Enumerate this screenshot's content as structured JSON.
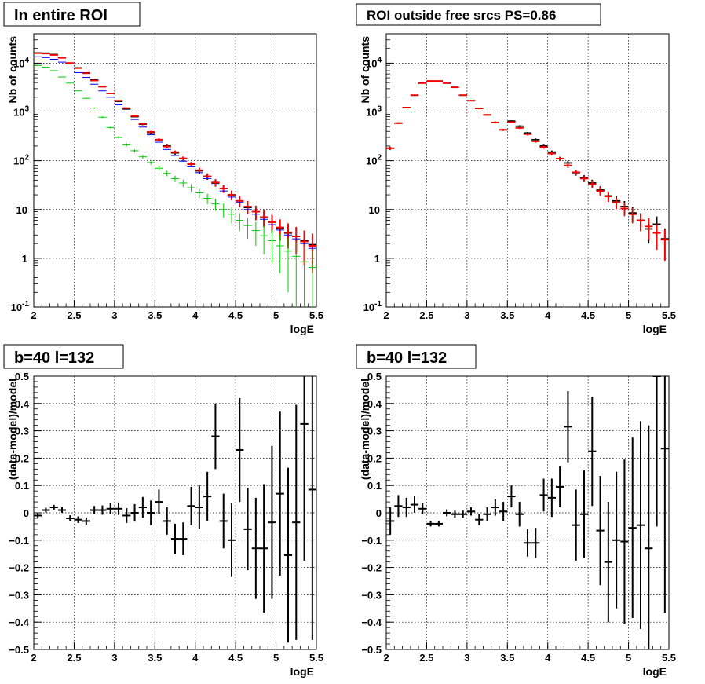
{
  "panels": [
    {
      "title": "In entire ROI"
    },
    {
      "title": "ROI outside free srcs PS=0.86"
    },
    {
      "title": "b=40 l=132"
    },
    {
      "title": "b=40 l=132"
    }
  ],
  "colors": {
    "data": "#000000",
    "model": "#ff0000",
    "component_blue": "#0000ff",
    "component_green": "#00cc00",
    "grid": "#000000"
  },
  "chart_data": [
    {
      "type": "line",
      "title": "In entire ROI",
      "xlabel": "logE",
      "ylabel": "Nb of counts",
      "xlim": [
        2,
        5.5
      ],
      "ylim": [
        0.1,
        40000
      ],
      "yscale": "log",
      "grid": true,
      "x_ticks": [
        "2",
        "2.5",
        "3",
        "3.5",
        "4",
        "4.5",
        "5",
        "5.5"
      ],
      "y_ticks": [
        "10^-1",
        "1",
        "10",
        "10^2",
        "10^3",
        "10^4"
      ],
      "bin_width": 0.1,
      "x": [
        2.05,
        2.15,
        2.25,
        2.35,
        2.45,
        2.55,
        2.65,
        2.75,
        2.85,
        2.95,
        3.05,
        3.15,
        3.25,
        3.35,
        3.45,
        3.55,
        3.65,
        3.75,
        3.85,
        3.95,
        4.05,
        4.15,
        4.25,
        4.35,
        4.45,
        4.55,
        4.65,
        4.75,
        4.85,
        4.95,
        5.05,
        5.15,
        5.25,
        5.35,
        5.45
      ],
      "series": [
        {
          "style": "black",
          "values": [
            16200,
            16000,
            15000,
            13000,
            10000,
            8000,
            6300,
            4500,
            3300,
            2400,
            1650,
            1150,
            800,
            560,
            380,
            270,
            200,
            145,
            110,
            85,
            62,
            47,
            35,
            27,
            20,
            15,
            11,
            9,
            7,
            5.5,
            4.2,
            3.3,
            2.8,
            2.3,
            1.9
          ],
          "errors_lo": [
            130,
            125,
            120,
            110,
            100,
            90,
            80,
            67,
            57,
            49,
            40,
            34,
            28,
            24,
            19,
            16,
            14,
            12,
            10,
            9,
            7.5,
            6.5,
            5.5,
            4.8,
            4,
            3.5,
            3,
            2.7,
            2.4,
            2.1,
            1.9,
            1.7,
            1.5,
            1.4,
            1.3
          ]
        },
        {
          "style": "red",
          "values": [
            16000,
            15700,
            14700,
            12800,
            10100,
            7900,
            6200,
            4400,
            3300,
            2400,
            1700,
            1200,
            820,
            570,
            390,
            270,
            195,
            150,
            112,
            85,
            64,
            48,
            36,
            27,
            20,
            15,
            11.5,
            9,
            7,
            5.5,
            4.3,
            3.4,
            2.8,
            2.2,
            1.8
          ],
          "errors_lo": [
            120,
            120,
            115,
            110,
            100,
            90,
            80,
            66,
            57,
            48,
            40,
            34,
            28,
            24,
            19,
            16,
            14,
            12,
            10,
            9,
            8,
            7,
            6,
            5,
            4.5,
            4,
            3.5,
            3,
            2.7,
            2.3,
            2,
            1.8,
            1.6,
            1.5,
            1.3
          ]
        },
        {
          "style": "blue",
          "values": [
            13500,
            13000,
            12000,
            10500,
            8000,
            6400,
            5100,
            3700,
            2700,
            2000,
            1400,
            1000,
            700,
            490,
            340,
            240,
            170,
            128,
            98,
            75,
            57,
            43,
            32,
            24,
            18,
            14,
            10,
            8,
            6.3,
            4.9,
            3.8,
            3,
            2.5,
            2,
            1.6
          ]
        },
        {
          "style": "green",
          "values": [
            9000,
            8300,
            7000,
            5200,
            3900,
            2700,
            1900,
            1200,
            780,
            480,
            300,
            210,
            160,
            120,
            92,
            70,
            55,
            43,
            35,
            28,
            22,
            17,
            13,
            10,
            8,
            6,
            4.7,
            3.7,
            2.9,
            2.3,
            1.8,
            1.4,
            1.1,
            0.85,
            0.65
          ],
          "errors_lo": [
            95,
            90,
            85,
            72,
            62,
            52,
            44,
            35,
            28,
            22,
            17,
            14,
            12,
            10,
            9,
            8,
            7,
            6.5,
            5.9,
            5.3,
            4.7,
            4.1,
            3.6,
            3.2,
            2.8,
            2.4,
            2.2,
            1.9,
            1.7,
            1.5,
            1.3,
            1.2,
            1.05,
            0.92,
            0.8
          ]
        }
      ]
    },
    {
      "type": "line",
      "title": "ROI outside free srcs PS=0.86",
      "xlabel": "logE",
      "ylabel": "Nb of counts",
      "xlim": [
        2,
        5.5
      ],
      "ylim": [
        0.1,
        40000
      ],
      "yscale": "log",
      "grid": true,
      "x_ticks": [
        "2",
        "2.5",
        "3",
        "3.5",
        "4",
        "4.5",
        "5",
        "5.5"
      ],
      "y_ticks": [
        "10^-1",
        "1",
        "10",
        "10^2",
        "10^3",
        "10^4"
      ],
      "bin_width": 0.1,
      "x": [
        2.05,
        2.15,
        2.25,
        2.35,
        2.45,
        2.55,
        2.65,
        2.75,
        2.85,
        2.95,
        3.05,
        3.15,
        3.25,
        3.35,
        3.45,
        3.55,
        3.65,
        3.75,
        3.85,
        3.95,
        4.05,
        4.15,
        4.25,
        4.35,
        4.45,
        4.55,
        4.65,
        4.75,
        4.85,
        4.95,
        5.05,
        5.15,
        5.25,
        5.35,
        5.45
      ],
      "series": [
        {
          "style": "black",
          "values": [
            180,
            590,
            1230,
            2200,
            3900,
            4300,
            4300,
            3900,
            3200,
            2200,
            1700,
            1180,
            870,
            610,
            430,
            650,
            510,
            370,
            270,
            200,
            150,
            110,
            90,
            57,
            44,
            35,
            25,
            19,
            15,
            11.5,
            8.5,
            6,
            4,
            5,
            2.5
          ],
          "errors_lo": [
            14,
            24,
            35,
            47,
            62,
            66,
            66,
            62,
            57,
            47,
            41,
            34,
            29,
            25,
            21,
            25,
            23,
            19,
            16,
            14,
            12,
            10,
            9.5,
            7.5,
            6.6,
            5.9,
            5,
            4.4,
            3.9,
            3.4,
            2.9,
            2.4,
            2,
            2.2,
            1.6
          ]
        },
        {
          "style": "red",
          "values": [
            180,
            590,
            1230,
            2200,
            3900,
            4300,
            4300,
            3900,
            3200,
            2200,
            1700,
            1180,
            870,
            610,
            430,
            620,
            470,
            350,
            250,
            190,
            140,
            110,
            80,
            58,
            43,
            33,
            24,
            18.5,
            14,
            10.5,
            8,
            6,
            4.5,
            3.3,
            2.4
          ],
          "errors_lo": [
            13,
            24,
            35,
            47,
            62,
            66,
            66,
            62,
            57,
            47,
            41,
            34,
            29,
            25,
            21,
            25,
            22,
            19,
            16,
            14,
            12,
            10,
            9,
            7.6,
            6.6,
            5.8,
            4.9,
            4.3,
            3.7,
            3.2,
            2.8,
            2.4,
            2.1,
            1.8,
            1.5
          ]
        }
      ]
    },
    {
      "type": "scatter",
      "title": "b=40 l=132",
      "xlabel": "logE",
      "ylabel": "(data-model)/model",
      "xlim": [
        2,
        5.5
      ],
      "ylim": [
        -0.5,
        0.5
      ],
      "grid": true,
      "x_ticks": [
        "2",
        "2.5",
        "3",
        "3.5",
        "4",
        "4.5",
        "5",
        "5.5"
      ],
      "y_ticks": [
        "-0.5",
        "-0.4",
        "-0.3",
        "-0.2",
        "-0.1",
        "0",
        "0.1",
        "0.2",
        "0.3",
        "0.4",
        "0.5"
      ],
      "bin_width": 0.1,
      "x": [
        2.05,
        2.15,
        2.25,
        2.35,
        2.45,
        2.55,
        2.65,
        2.75,
        2.85,
        2.95,
        3.05,
        3.15,
        3.25,
        3.35,
        3.45,
        3.55,
        3.65,
        3.75,
        3.85,
        3.95,
        4.05,
        4.15,
        4.25,
        4.35,
        4.45,
        4.55,
        4.65,
        4.75,
        4.85,
        4.95,
        5.05,
        5.15,
        5.25,
        5.35,
        5.45
      ],
      "values": [
        -0.01,
        0.01,
        0.02,
        0.01,
        -0.02,
        -0.025,
        -0.03,
        0.01,
        0.01,
        0.015,
        0.015,
        -0.01,
        0.0,
        0.02,
        0.0,
        0.04,
        -0.03,
        -0.095,
        -0.095,
        0.025,
        0.02,
        0.06,
        0.28,
        -0.03,
        -0.1,
        0.23,
        -0.06,
        -0.13,
        -0.13,
        -0.035,
        0.07,
        -0.155,
        -0.035,
        0.325,
        0.085
      ],
      "errors": [
        0.009,
        0.009,
        0.009,
        0.01,
        0.011,
        0.012,
        0.013,
        0.015,
        0.017,
        0.02,
        0.023,
        0.027,
        0.032,
        0.038,
        0.045,
        0.045,
        0.05,
        0.055,
        0.06,
        0.07,
        0.08,
        0.09,
        0.12,
        0.1,
        0.135,
        0.19,
        0.15,
        0.185,
        0.235,
        0.28,
        0.3,
        0.32,
        0.43,
        0.5,
        0.55
      ]
    },
    {
      "type": "scatter",
      "title": "b=40 l=132",
      "xlabel": "logE",
      "ylabel": "(data-model)/model",
      "xlim": [
        2,
        5.5
      ],
      "ylim": [
        -0.5,
        0.5
      ],
      "grid": true,
      "x_ticks": [
        "2",
        "2.5",
        "3",
        "3.5",
        "4",
        "4.5",
        "5",
        "5.5"
      ],
      "y_ticks": [
        "-0.5",
        "-0.4",
        "-0.3",
        "-0.2",
        "-0.1",
        "0",
        "0.1",
        "0.2",
        "0.3",
        "0.4",
        "0.5"
      ],
      "bin_width": 0.1,
      "x": [
        2.05,
        2.15,
        2.25,
        2.35,
        2.45,
        2.55,
        2.65,
        2.75,
        2.85,
        2.95,
        3.05,
        3.15,
        3.25,
        3.35,
        3.45,
        3.55,
        3.65,
        3.75,
        3.85,
        3.95,
        4.05,
        4.15,
        4.25,
        4.35,
        4.45,
        4.55,
        4.65,
        4.75,
        4.85,
        4.95,
        5.05,
        5.15,
        5.25,
        5.35,
        5.45
      ],
      "values": [
        -0.03,
        0.025,
        0.02,
        0.03,
        0.015,
        -0.04,
        -0.04,
        0.0,
        -0.005,
        -0.005,
        0.005,
        -0.025,
        -0.005,
        0.02,
        0.005,
        0.06,
        -0.005,
        -0.11,
        -0.11,
        0.065,
        0.055,
        0.095,
        0.315,
        -0.045,
        -0.005,
        0.225,
        -0.065,
        -0.18,
        -0.1,
        -0.105,
        -0.055,
        -0.045,
        -0.13,
        0.5,
        0.235
      ],
      "errors": [
        0.05,
        0.04,
        0.035,
        0.03,
        0.02,
        0.01,
        0.01,
        0.013,
        0.013,
        0.013,
        0.015,
        0.02,
        0.025,
        0.03,
        0.035,
        0.04,
        0.045,
        0.05,
        0.055,
        0.06,
        0.07,
        0.075,
        0.13,
        0.13,
        0.16,
        0.2,
        0.2,
        0.22,
        0.25,
        0.3,
        0.33,
        0.38,
        0.45,
        0.55,
        0.6
      ]
    }
  ]
}
